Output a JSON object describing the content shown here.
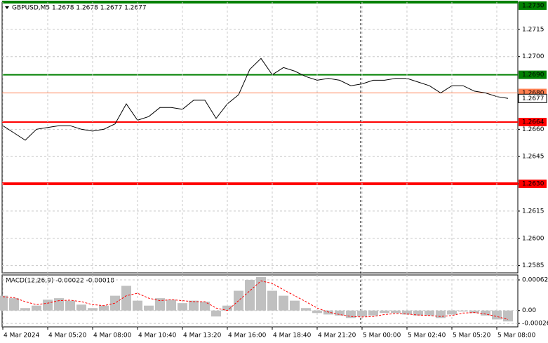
{
  "chart_data": [
    {
      "type": "line",
      "title": "GBPUSD,M5  1.2678 1.2678 1.2677 1.2677",
      "x": [
        0,
        8,
        16,
        24,
        32,
        40,
        48,
        56,
        64,
        72,
        80,
        88,
        96,
        104,
        112,
        120,
        128,
        136,
        144,
        152,
        160,
        168,
        176,
        184,
        192,
        200,
        208,
        216,
        224,
        232,
        240,
        248,
        256,
        264,
        272,
        280,
        288,
        296,
        304,
        312,
        320,
        328,
        336,
        344,
        352,
        360
      ],
      "series": [
        {
          "color": "#000000",
          "values": [
            1.2662,
            1.2658,
            1.2654,
            1.266,
            1.2661,
            1.2662,
            1.2662,
            1.266,
            1.2659,
            1.266,
            1.2663,
            1.2674,
            1.2665,
            1.2667,
            1.2672,
            1.2672,
            1.2671,
            1.2676,
            1.2676,
            1.2666,
            1.2674,
            1.2679,
            1.2693,
            1.2699,
            1.269,
            1.2694,
            1.2692,
            1.2689,
            1.2687,
            1.2688,
            1.2687,
            1.2684,
            1.2685,
            1.2687,
            1.2687,
            1.2688,
            1.2688,
            1.2686,
            1.2684,
            1.268,
            1.2684,
            1.2684,
            1.2681,
            1.268,
            1.2678,
            1.2677
          ]
        }
      ],
      "xlim": [
        -0.5,
        367
      ],
      "ylim": [
        1.2581,
        1.273
      ],
      "yticks": [
        1.2715,
        {
          "value": 1.27,
          "label": "1.2700"
        },
        {
          "value": 1.266,
          "label": "1.2660"
        },
        1.2645,
        {
          "value": 1.263,
          "label": "1.2630"
        },
        1.2615,
        {
          "value": 1.26,
          "label": "1.2600"
        },
        1.2585
      ],
      "levels": [
        {
          "value": 1.273,
          "label": "1.2730",
          "color": "#008000",
          "width": 4
        },
        {
          "value": 1.269,
          "label": "1.2690",
          "color": "#008000",
          "width": 2
        },
        {
          "value": 1.268,
          "label": "1.2680",
          "color": "#ff7f50",
          "width": 1
        },
        {
          "value": 1.2664,
          "label": "1.2664",
          "color": "#ff0000",
          "width": 2
        },
        {
          "value": 1.263,
          "label": "1.2630",
          "color": "#ff0000",
          "width": 4
        }
      ],
      "last_price": 1.2677,
      "grid": true
    },
    {
      "type": "macd",
      "title": "MACD(12,26,9) -0.00022 -0.00018",
      "x": [
        0,
        8,
        16,
        24,
        32,
        40,
        48,
        56,
        64,
        72,
        80,
        88,
        96,
        104,
        112,
        120,
        128,
        136,
        144,
        152,
        160,
        168,
        176,
        184,
        192,
        200,
        208,
        216,
        224,
        232,
        240,
        248,
        256,
        264,
        272,
        280,
        288,
        296,
        304,
        312,
        320,
        328,
        336,
        344,
        352,
        360
      ],
      "series": [
        {
          "kind": "bar",
          "color": "#c0c0c0",
          "values": [
            0.0003,
            0.00025,
            5e-05,
            0.0001,
            0.00022,
            0.00025,
            0.0002,
            0.00012,
            5e-05,
            0.0001,
            0.0003,
            0.0005,
            0.0002,
            0.0001,
            0.00025,
            0.00022,
            0.00015,
            0.0002,
            0.00018,
            -0.00012,
            0.0001,
            0.0004,
            0.00062,
            0.00068,
            0.0004,
            0.0003,
            0.0002,
            5e-05,
            -5e-05,
            -8e-05,
            -0.0001,
            -0.00015,
            -0.00012,
            -0.0001,
            -5e-05,
            -5e-05,
            -8e-05,
            -0.0001,
            -0.0001,
            -0.00015,
            -8e-05,
            -2e-05,
            -5e-05,
            -0.0001,
            -0.00018,
            -0.00022
          ]
        },
        {
          "kind": "dashed",
          "color": "#ff0000",
          "values": [
            0.00028,
            0.00026,
            0.00018,
            0.00012,
            0.00015,
            0.0002,
            0.00021,
            0.00018,
            0.00012,
            0.0001,
            0.00015,
            0.0003,
            0.00035,
            0.00025,
            0.0002,
            0.00022,
            0.0002,
            0.00018,
            0.00018,
            5e-05,
            0,
            0.0002,
            0.0004,
            0.0006,
            0.00055,
            0.00042,
            0.0003,
            0.00018,
            5e-05,
            -3e-05,
            -8e-05,
            -0.00012,
            -0.00013,
            -0.00012,
            -8e-05,
            -6e-05,
            -7e-05,
            -9e-05,
            -0.0001,
            -0.00012,
            -0.0001,
            -5e-05,
            -4e-05,
            -7e-05,
            -0.00012,
            -0.00018
          ]
        }
      ],
      "xlim": [
        -0.5,
        367
      ],
      "ylim": [
        -0.00033,
        0.00072
      ],
      "yticks": [
        0.00062,
        {
          "value": 0,
          "label": "0.00"
        },
        -0.00026
      ],
      "xticks": [
        {
          "value": 0,
          "label": "4 Mar 2024"
        },
        {
          "value": 32,
          "label": "4 Mar 05:20"
        },
        {
          "value": 64,
          "label": "4 Mar 08:00"
        },
        {
          "value": 96,
          "label": "4 Mar 10:40"
        },
        {
          "value": 128,
          "label": "4 Mar 13:20"
        },
        {
          "value": 160,
          "label": "4 Mar 16:00"
        },
        {
          "value": 192,
          "label": "4 Mar 18:40"
        },
        {
          "value": 224,
          "label": "4 Mar 21:20"
        },
        {
          "value": 256,
          "label": "5 Mar 00:00"
        },
        {
          "value": 288,
          "label": "5 Mar 02:40"
        },
        {
          "value": 320,
          "label": "5 Mar 05:20"
        },
        {
          "value": 352,
          "label": "5 Mar 08:00"
        }
      ],
      "grid": true
    }
  ]
}
